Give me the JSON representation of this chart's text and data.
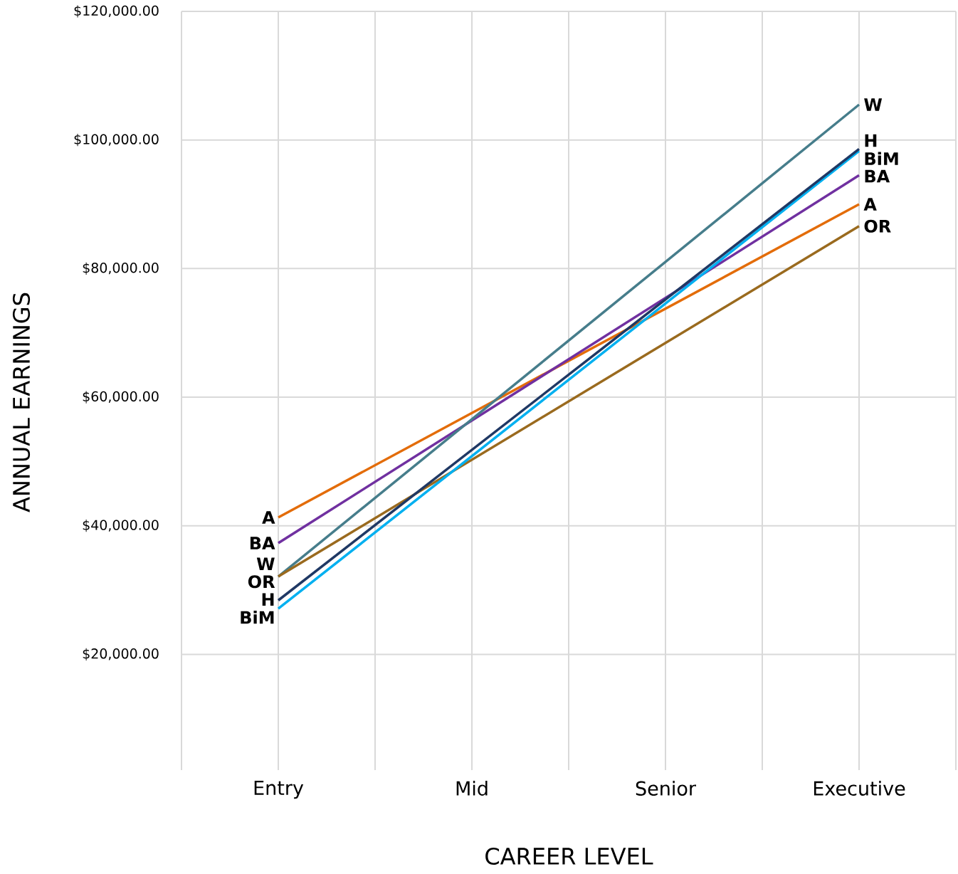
{
  "chart_data": {
    "type": "line",
    "xlabel": "CAREER LEVEL",
    "ylabel": "ANNUAL EARNINGS",
    "categories": [
      "Entry",
      "Mid",
      "Senior",
      "Executive"
    ],
    "series": [
      {
        "name": "A",
        "color": "#E36C09",
        "values": [
          41300,
          null,
          null,
          90000
        ]
      },
      {
        "name": "BA",
        "color": "#7030A0",
        "values": [
          37300,
          null,
          null,
          94500
        ]
      },
      {
        "name": "W",
        "color": "#467D8B",
        "values": [
          32100,
          null,
          null,
          105500
        ]
      },
      {
        "name": "OR",
        "color": "#9A6A1E",
        "values": [
          32100,
          null,
          null,
          86600
        ]
      },
      {
        "name": "BiM",
        "color": "#00B0F0",
        "values": [
          27100,
          null,
          null,
          98300
        ]
      },
      {
        "name": "H",
        "color": "#1F3864",
        "values": [
          28400,
          null,
          null,
          98600
        ]
      }
    ],
    "ylim": [
      2000,
      120000
    ],
    "yticks": [
      {
        "value": 20000,
        "label": "$20,000.00"
      },
      {
        "value": 40000,
        "label": "$40,000.00"
      },
      {
        "value": 60000,
        "label": "$60,000.00"
      },
      {
        "value": 80000,
        "label": "$80,000.00"
      },
      {
        "value": 100000,
        "label": "$100,000.00"
      },
      {
        "value": 120000,
        "label": "$120,000.00"
      }
    ],
    "grid": true,
    "line_style": "solid"
  }
}
